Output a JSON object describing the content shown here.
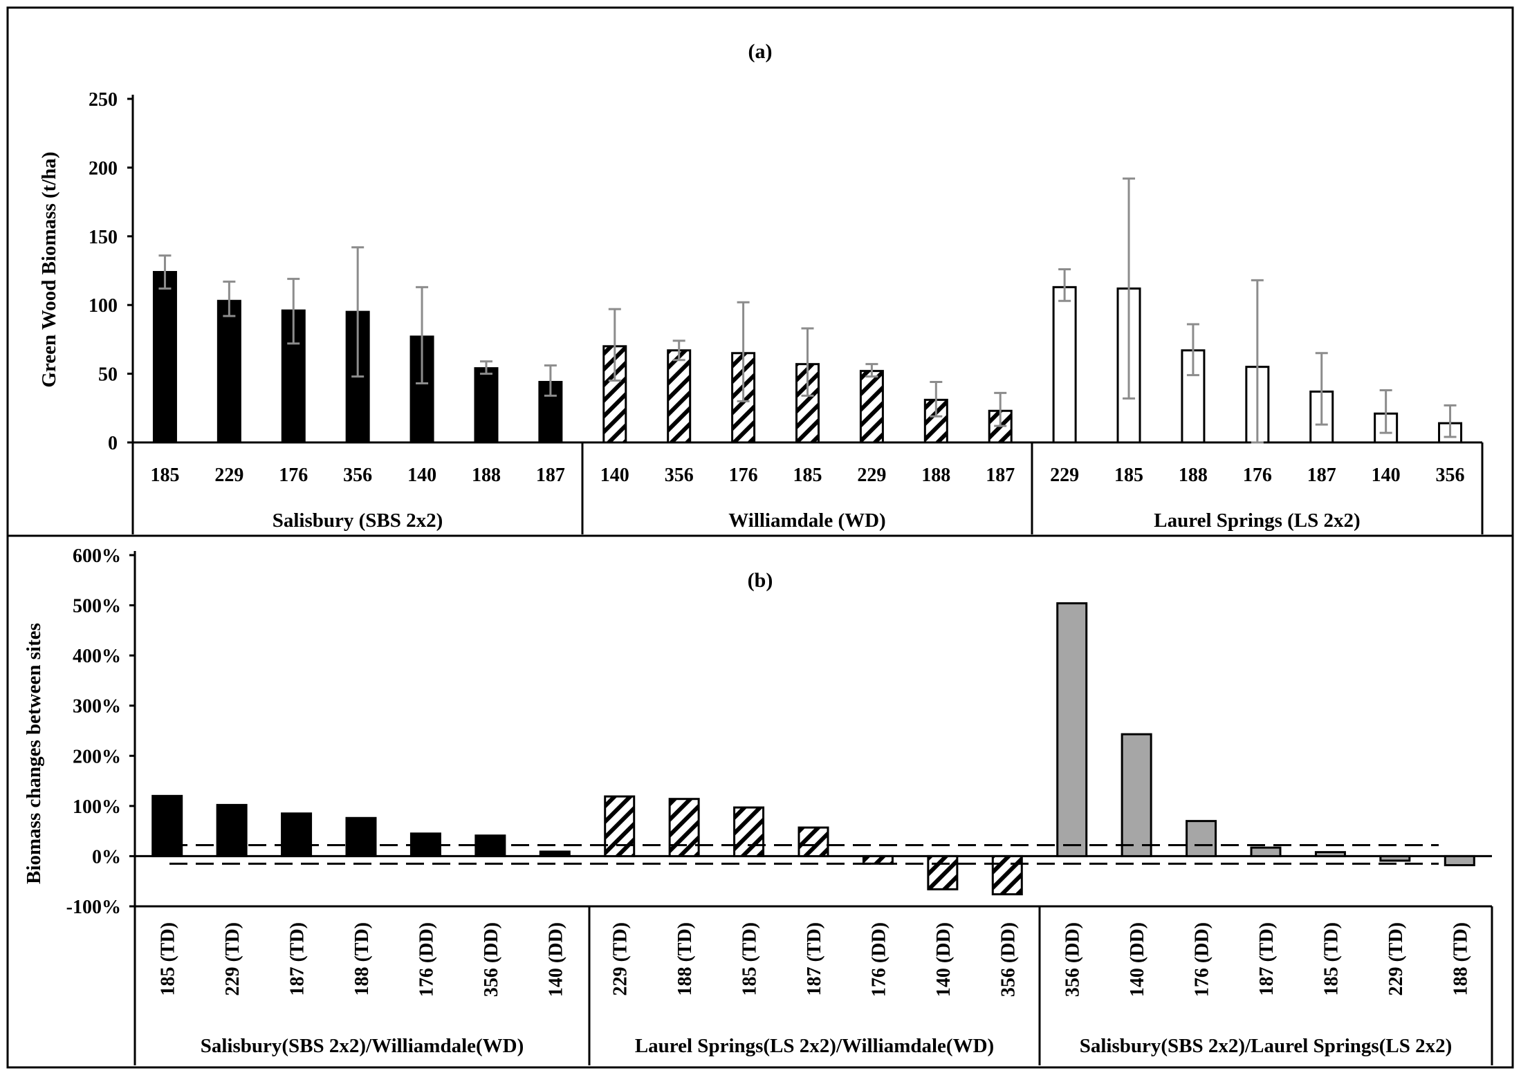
{
  "chart_data": [
    {
      "type": "bar",
      "title": "(a)",
      "ylabel": "Green Wood Biomass (t/ha)",
      "xlabel": "",
      "ylim": [
        0,
        250
      ],
      "yticks": [
        "0",
        "50",
        "100",
        "150",
        "200",
        "250"
      ],
      "grid": false,
      "groups": [
        {
          "name": "Salisbury (SBS 2x2)",
          "pattern": "solid-black",
          "categories": [
            "185",
            "229",
            "176",
            "356",
            "140",
            "188",
            "187"
          ],
          "values": [
            124,
            103,
            96,
            95,
            77,
            54,
            44
          ],
          "error_low": [
            112,
            92,
            72,
            48,
            43,
            50,
            34
          ],
          "error_high": [
            136,
            117,
            119,
            142,
            113,
            59,
            56
          ]
        },
        {
          "name": "Williamdale (WD)",
          "pattern": "hatched",
          "categories": [
            "140",
            "356",
            "176",
            "185",
            "229",
            "188",
            "187"
          ],
          "values": [
            70,
            67,
            65,
            57,
            52,
            31,
            23
          ],
          "error_low": [
            45,
            60,
            30,
            34,
            48,
            19,
            12
          ],
          "error_high": [
            97,
            74,
            102,
            83,
            57,
            44,
            36
          ]
        },
        {
          "name": "Laurel Springs (LS 2x2)",
          "pattern": "white",
          "categories": [
            "229",
            "185",
            "188",
            "176",
            "187",
            "140",
            "356"
          ],
          "values": [
            113,
            112,
            67,
            55,
            37,
            21,
            14
          ],
          "error_low": [
            103,
            32,
            49,
            0,
            13,
            7,
            4
          ],
          "error_high": [
            126,
            192,
            86,
            118,
            65,
            38,
            27
          ]
        }
      ]
    },
    {
      "type": "bar",
      "title": "(b)",
      "ylabel": "Biomass changes between sites",
      "xlabel": "",
      "ylim": [
        -100,
        600
      ],
      "yticks": [
        "-100%",
        "0%",
        "100%",
        "200%",
        "300%",
        "400%",
        "500%",
        "600%"
      ],
      "reference_lines": [
        22,
        -15
      ],
      "grid": false,
      "groups": [
        {
          "name": "Salisbury(SBS 2x2)/Williamdale(WD)",
          "pattern": "solid-black",
          "categories": [
            "185 (TD)",
            "229 (TD)",
            "187 (TD)",
            "188 (TD)",
            "176 (DD)",
            "356 (DD)",
            "140 (DD)"
          ],
          "values": [
            120,
            102,
            85,
            76,
            45,
            41,
            9
          ]
        },
        {
          "name": "Laurel Springs(LS 2x2)/Williamdale(WD)",
          "pattern": "hatched",
          "categories": [
            "229 (TD)",
            "188 (TD)",
            "185 (TD)",
            "187 (TD)",
            "176 (DD)",
            "140 (DD)",
            "356 (DD)"
          ],
          "values": [
            119,
            114,
            97,
            57,
            -15,
            -66,
            -76
          ]
        },
        {
          "name": "Salisbury(SBS 2x2)/Laurel Springs(LS 2x2)",
          "pattern": "gray",
          "categories": [
            "356 (DD)",
            "140 (DD)",
            "176 (DD)",
            "187 (TD)",
            "185 (TD)",
            "229 (TD)",
            "188 (TD)"
          ],
          "values": [
            504,
            243,
            70,
            17,
            8,
            -9,
            -18
          ]
        }
      ]
    }
  ]
}
